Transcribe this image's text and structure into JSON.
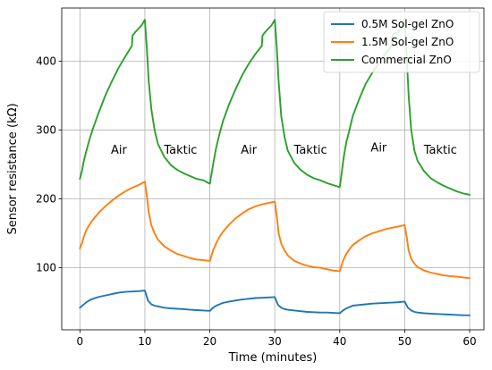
{
  "chart_data": {
    "type": "line",
    "xlabel": "Time (minutes)",
    "ylabel": "Sensor resistance (kΩ)",
    "xlim": [
      -2.8,
      62.2
    ],
    "ylim": [
      10,
      477
    ],
    "xticks": [
      0,
      10,
      20,
      30,
      40,
      50,
      60
    ],
    "yticks": [
      100,
      200,
      300,
      400
    ],
    "grid": true,
    "legend_position": "top-right",
    "annotations": [
      {
        "text": "Air",
        "x": 6.0,
        "y": 272
      },
      {
        "text": "Taktic",
        "x": 15.5,
        "y": 272
      },
      {
        "text": "Air",
        "x": 26.0,
        "y": 272
      },
      {
        "text": "Taktic",
        "x": 35.5,
        "y": 272
      },
      {
        "text": "Air",
        "x": 46.0,
        "y": 275
      },
      {
        "text": "Taktic",
        "x": 55.5,
        "y": 272
      }
    ],
    "series": [
      {
        "name": "0.5M Sol-gel ZnO",
        "color": "#1f77b4",
        "x": [
          0,
          0.5,
          1,
          1.5,
          2,
          3,
          4,
          5,
          6,
          7,
          8,
          9,
          10,
          10.5,
          11,
          11.5,
          12,
          13,
          14,
          15,
          16,
          17,
          18,
          19,
          20,
          20.5,
          21,
          21.5,
          22,
          23,
          24,
          25,
          26,
          27,
          28,
          29,
          30,
          30.5,
          31,
          31.5,
          32,
          33,
          34,
          35,
          36,
          37,
          38,
          39,
          40,
          40.5,
          41,
          41.5,
          42,
          43,
          44,
          45,
          46,
          47,
          48,
          49,
          50,
          50.5,
          51,
          51.5,
          52,
          53,
          54,
          55,
          56,
          57,
          58,
          59,
          60
        ],
        "y": [
          42,
          46,
          50,
          53,
          55,
          58,
          60,
          62,
          64,
          65,
          65.5,
          66,
          67,
          52,
          47,
          45,
          44,
          42,
          41,
          40.5,
          40,
          39,
          38.5,
          38,
          37.5,
          42,
          45,
          47,
          49,
          51,
          52.5,
          54,
          55,
          56,
          56.5,
          57,
          57.5,
          46,
          42,
          40,
          39,
          38,
          37,
          36,
          35.5,
          35,
          35,
          34.5,
          34,
          38,
          41,
          43,
          45,
          46,
          47,
          48,
          48.5,
          49,
          49.5,
          50,
          51,
          42,
          38,
          36,
          35,
          34,
          33.5,
          33,
          32.5,
          32,
          31.5,
          31.2,
          31
        ]
      },
      {
        "name": "1.5M Sol-gel ZnO",
        "color": "#ff7f0e",
        "x": [
          0,
          0.3,
          0.6,
          1,
          1.5,
          2,
          3,
          4,
          5,
          6,
          7,
          8,
          9,
          10,
          10.3,
          10.6,
          11,
          11.5,
          12,
          13,
          14,
          15,
          16,
          17,
          18,
          19,
          20,
          20.5,
          21,
          21.5,
          22,
          23,
          24,
          25,
          26,
          27,
          28,
          29,
          30,
          30.3,
          30.6,
          31,
          31.5,
          32,
          33,
          34,
          35,
          36,
          37,
          38,
          39,
          40,
          40.5,
          41,
          41.5,
          42,
          43,
          44,
          45,
          46,
          47,
          48,
          49,
          50,
          50.3,
          50.6,
          51,
          51.5,
          52,
          53,
          54,
          55,
          56,
          57,
          58,
          59,
          60
        ],
        "y": [
          128,
          135,
          145,
          155,
          163,
          170,
          181,
          190,
          198,
          205,
          211,
          216,
          220,
          225,
          205,
          180,
          162,
          150,
          141,
          131,
          125,
          120,
          117,
          114,
          112,
          111,
          110,
          125,
          136,
          145,
          152,
          163,
          172,
          179,
          185,
          189,
          192,
          194,
          196,
          175,
          150,
          135,
          125,
          118,
          110,
          106,
          103,
          101,
          100,
          98,
          96,
          95,
          110,
          120,
          127,
          133,
          140,
          146,
          150,
          153,
          156,
          158,
          160,
          162,
          145,
          125,
          113,
          106,
          101,
          96,
          93,
          91,
          89,
          88,
          87,
          86,
          85
        ]
      },
      {
        "name": "Commercial ZnO",
        "color": "#2ca02c",
        "x": [
          0,
          0.3,
          0.6,
          1,
          1.5,
          2,
          3,
          4,
          5,
          6,
          7,
          8,
          8.1,
          8.5,
          9,
          9.5,
          10,
          10.3,
          10.6,
          11,
          11.5,
          12,
          13,
          14,
          15,
          16,
          17,
          18,
          19,
          20,
          20.3,
          20.6,
          21,
          21.5,
          22,
          23,
          24,
          25,
          26,
          27,
          28,
          28.1,
          28.5,
          29,
          29.5,
          30,
          30.3,
          30.6,
          31,
          31.5,
          32,
          33,
          34,
          35,
          36,
          37,
          38,
          39,
          40,
          40.3,
          40.6,
          41,
          41.5,
          42,
          43,
          44,
          45,
          46,
          47,
          48,
          48.1,
          48.5,
          49,
          49.5,
          50,
          50.3,
          50.6,
          51,
          51.5,
          52,
          53,
          54,
          55,
          56,
          57,
          58,
          59,
          60
        ],
        "y": [
          229,
          240,
          255,
          270,
          287,
          302,
          328,
          352,
          372,
          391,
          407,
          422,
          437,
          442,
          447,
          452,
          460,
          420,
          370,
          330,
          300,
          280,
          261,
          249,
          242,
          237,
          233,
          229,
          227,
          222,
          238,
          255,
          275,
          295,
          312,
          338,
          360,
          380,
          396,
          410,
          422,
          437,
          442,
          447,
          452,
          460,
          420,
          370,
          320,
          290,
          270,
          252,
          242,
          235,
          230,
          227,
          223,
          220,
          217,
          238,
          260,
          282,
          300,
          320,
          345,
          367,
          383,
          397,
          410,
          422,
          437,
          440,
          442,
          450,
          458,
          410,
          350,
          300,
          270,
          255,
          240,
          230,
          224,
          219,
          215,
          211,
          208,
          206
        ]
      }
    ]
  }
}
